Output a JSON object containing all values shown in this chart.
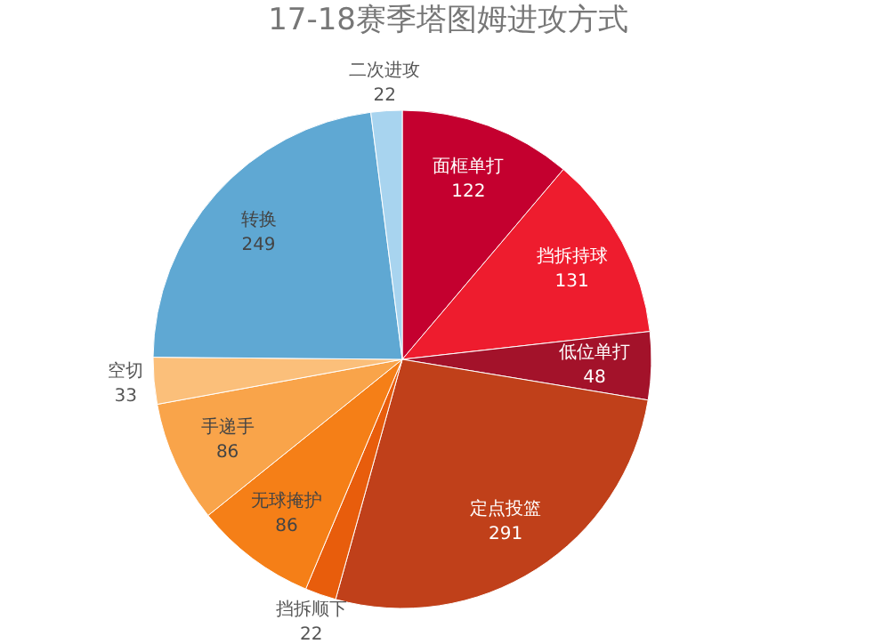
{
  "chart_data": {
    "type": "pie",
    "title": "17-18赛季塔图姆进攻方式",
    "categories": [
      "面框单打",
      "挡拆持球",
      "低位单打",
      "定点投篮",
      "挡拆顺下",
      "无球掩护",
      "手递手",
      "空切",
      "转换",
      "二次进攻"
    ],
    "values": [
      122,
      131,
      48,
      291,
      22,
      86,
      86,
      33,
      249,
      22
    ],
    "colors": [
      "#c4002f",
      "#ee1c2e",
      "#a3122a",
      "#c0401a",
      "#e85d0c",
      "#f57f17",
      "#f9a44a",
      "#fbbf7a",
      "#5fa8d3",
      "#a8d4ef"
    ],
    "data_labels": true
  }
}
